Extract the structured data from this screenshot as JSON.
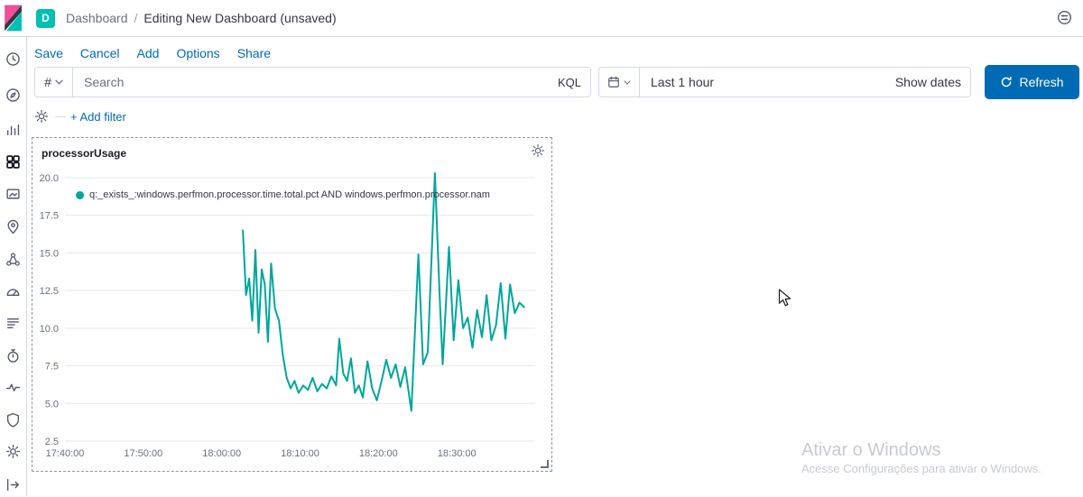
{
  "colors": {
    "teal": "#00A69B",
    "link_blue": "#006BB4",
    "badge_teal": "#00BFB3",
    "logo_pink": "#F04E98",
    "primary_button": "#006BB4"
  },
  "header": {
    "space_badge": "D",
    "breadcrumb_root": "Dashboard",
    "breadcrumb_separator": "/",
    "breadcrumb_current": "Editing New Dashboard (unsaved)",
    "icons": [
      "kibana-logo",
      "header-controls-icon"
    ]
  },
  "sidebar": {
    "icons": [
      "recently-viewed",
      "discover",
      "visualize",
      "dashboard",
      "canvas",
      "maps",
      "machine-learning",
      "metrics",
      "logs",
      "apm",
      "uptime",
      "siem",
      "management",
      "dock-navigation"
    ],
    "active": "dashboard"
  },
  "toolbar": {
    "items": [
      "Save",
      "Cancel",
      "Add",
      "Options",
      "Share"
    ]
  },
  "query_bar": {
    "hash_label": "#",
    "search_placeholder": "Search",
    "search_value": "",
    "language_label": "KQL",
    "time_range_label": "Last 1 hour",
    "show_dates_label": "Show dates",
    "refresh_label": "Refresh"
  },
  "filter_bar": {
    "add_filter_label": "+ Add filter"
  },
  "panel": {
    "title": "processorUsage"
  },
  "watermark": {
    "line1": "Ativar o Windows",
    "line2": "Acesse Configurações para ativar o Windows."
  },
  "chart_data": {
    "type": "line",
    "title": "processorUsage",
    "legend": [
      {
        "label": "q:_exists_:windows.perfmon.processor.time.total.pct AND windows.perfmon.processor.nam",
        "color": "#00A69B"
      }
    ],
    "x_axis": {
      "tick_labels": [
        "17:40:00",
        "17:50:00",
        "18:00:00",
        "18:10:00",
        "18:20:00",
        "18:30:00"
      ],
      "tick_minutes": [
        0,
        10,
        20,
        30,
        40,
        50
      ],
      "domain_minutes": [
        0,
        60
      ],
      "start_time": "17:40:00"
    },
    "y_axis": {
      "ticks": [
        2.5,
        5,
        7.5,
        10,
        12.5,
        15,
        17.5,
        20
      ],
      "tick_labels": [
        "2.5",
        "5.0",
        "7.5",
        "10.0",
        "12.5",
        "15.0",
        "17.5",
        "20.0"
      ],
      "domain": [
        2.5,
        20
      ]
    },
    "grid": "horizontal",
    "series": [
      {
        "name": "q:_exists_:windows.perfmon.processor.time.total.pct AND windows.perfmon.processor.nam",
        "color": "#00A69B",
        "unit": "pct",
        "points_minutes_value": [
          [
            22.7,
            16.5
          ],
          [
            23.1,
            12.2
          ],
          [
            23.5,
            13.3
          ],
          [
            23.9,
            10.5
          ],
          [
            24.3,
            15.2
          ],
          [
            24.7,
            9.7
          ],
          [
            25.1,
            13.9
          ],
          [
            25.5,
            12.9
          ],
          [
            25.9,
            9.1
          ],
          [
            26.3,
            14.3
          ],
          [
            26.8,
            11.3
          ],
          [
            27.3,
            10.5
          ],
          [
            27.8,
            8.2
          ],
          [
            28.3,
            6.7
          ],
          [
            28.8,
            6.0
          ],
          [
            29.3,
            6.5
          ],
          [
            29.8,
            5.7
          ],
          [
            30.4,
            6.2
          ],
          [
            31,
            5.9
          ],
          [
            31.6,
            6.7
          ],
          [
            32.2,
            5.8
          ],
          [
            32.8,
            6.3
          ],
          [
            33.4,
            6.0
          ],
          [
            34,
            6.8
          ],
          [
            34.6,
            6.2
          ],
          [
            35,
            9.3
          ],
          [
            35.5,
            7.0
          ],
          [
            36,
            6.5
          ],
          [
            36.5,
            8.0
          ],
          [
            37,
            5.7
          ],
          [
            37.5,
            6.2
          ],
          [
            38,
            5.4
          ],
          [
            38.6,
            7.8
          ],
          [
            39.2,
            6.0
          ],
          [
            39.8,
            5.2
          ],
          [
            40.4,
            6.5
          ],
          [
            41,
            7.9
          ],
          [
            41.6,
            6.7
          ],
          [
            42.2,
            7.6
          ],
          [
            42.8,
            6.1
          ],
          [
            43.4,
            7.4
          ],
          [
            44.2,
            4.5
          ],
          [
            45.1,
            14.9
          ],
          [
            45.7,
            7.6
          ],
          [
            46.3,
            8.4
          ],
          [
            47.2,
            20.3
          ],
          [
            47.8,
            12.2
          ],
          [
            48.2,
            7.6
          ],
          [
            49,
            15.4
          ],
          [
            49.6,
            9.2
          ],
          [
            50.2,
            13.2
          ],
          [
            50.8,
            10.0
          ],
          [
            51.4,
            10.7
          ],
          [
            52,
            8.7
          ],
          [
            52.6,
            11.2
          ],
          [
            53.2,
            9.4
          ],
          [
            53.8,
            12.2
          ],
          [
            54.4,
            9.2
          ],
          [
            55,
            10.2
          ],
          [
            55.6,
            13.0
          ],
          [
            56.2,
            9.3
          ],
          [
            56.8,
            12.9
          ],
          [
            57.4,
            11.0
          ],
          [
            58,
            11.7
          ],
          [
            58.6,
            11.4
          ]
        ]
      }
    ]
  }
}
